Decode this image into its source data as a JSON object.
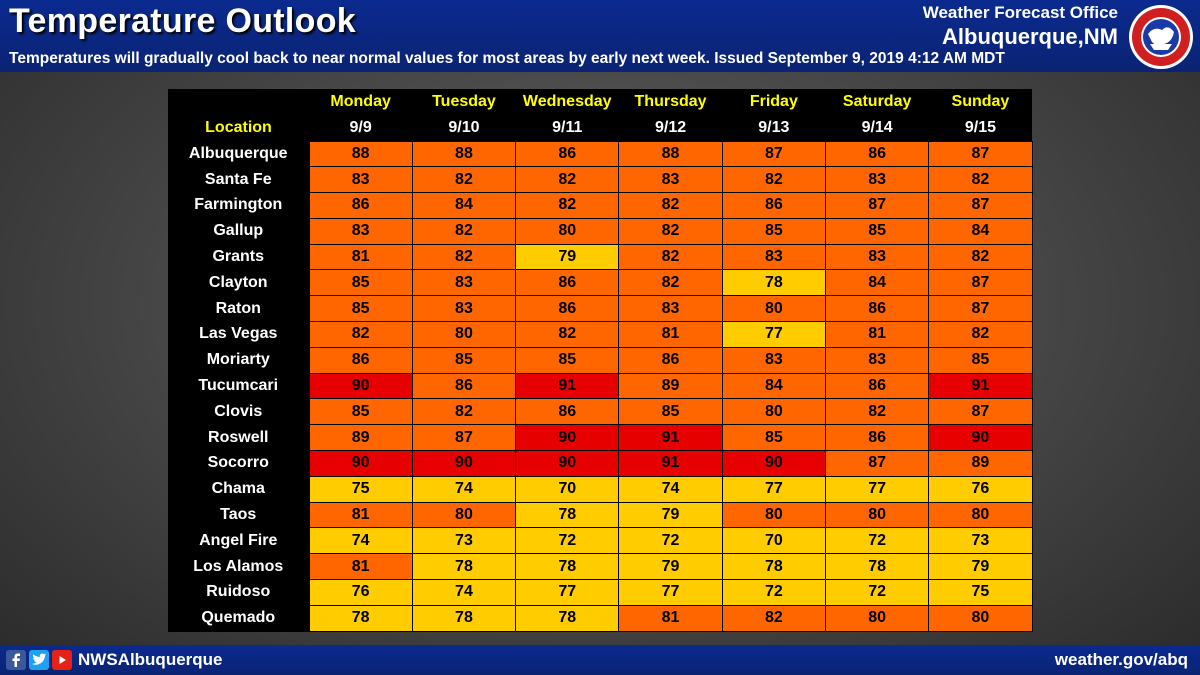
{
  "header": {
    "title": "Temperature Outlook",
    "subtitle": "Temperatures will gradually  cool back to near normal values for most areas by early next week.  Issued September 9, 2019 4:12 AM MDT",
    "office_line1": "Weather Forecast Office",
    "office_line2": "Albuquerque,NM"
  },
  "footer": {
    "handle": "NWSAlbuquerque",
    "website": "weather.gov/abq"
  },
  "colors": {
    "hot": "#e60000",
    "warm": "#ff6600",
    "mild": "#ffcc00"
  },
  "chart_data": {
    "type": "table",
    "title": "Temperature Outlook",
    "location_header": "Location",
    "days": [
      "Monday",
      "Tuesday",
      "Wednesday",
      "Thursday",
      "Friday",
      "Saturday",
      "Sunday"
    ],
    "dates": [
      "9/9",
      "9/10",
      "9/11",
      "9/12",
      "9/13",
      "9/14",
      "9/15"
    ],
    "rows": [
      {
        "location": "Albuquerque",
        "temps": [
          88,
          88,
          86,
          88,
          87,
          86,
          87
        ]
      },
      {
        "location": "Santa Fe",
        "temps": [
          83,
          82,
          82,
          83,
          82,
          83,
          82
        ]
      },
      {
        "location": "Farmington",
        "temps": [
          86,
          84,
          82,
          82,
          86,
          87,
          87
        ]
      },
      {
        "location": "Gallup",
        "temps": [
          83,
          82,
          80,
          82,
          85,
          85,
          84
        ]
      },
      {
        "location": "Grants",
        "temps": [
          81,
          82,
          79,
          82,
          83,
          83,
          82
        ]
      },
      {
        "location": "Clayton",
        "temps": [
          85,
          83,
          86,
          82,
          78,
          84,
          87
        ]
      },
      {
        "location": "Raton",
        "temps": [
          85,
          83,
          86,
          83,
          80,
          86,
          87
        ]
      },
      {
        "location": "Las Vegas",
        "temps": [
          82,
          80,
          82,
          81,
          77,
          81,
          82
        ]
      },
      {
        "location": "Moriarty",
        "temps": [
          86,
          85,
          85,
          86,
          83,
          83,
          85
        ]
      },
      {
        "location": "Tucumcari",
        "temps": [
          90,
          86,
          91,
          89,
          84,
          86,
          91
        ]
      },
      {
        "location": "Clovis",
        "temps": [
          85,
          82,
          86,
          85,
          80,
          82,
          87
        ]
      },
      {
        "location": "Roswell",
        "temps": [
          89,
          87,
          90,
          91,
          85,
          86,
          90
        ]
      },
      {
        "location": "Socorro",
        "temps": [
          90,
          90,
          90,
          91,
          90,
          87,
          89
        ]
      },
      {
        "location": "Chama",
        "temps": [
          75,
          74,
          70,
          74,
          77,
          77,
          76
        ]
      },
      {
        "location": "Taos",
        "temps": [
          81,
          80,
          78,
          79,
          80,
          80,
          80
        ]
      },
      {
        "location": "Angel Fire",
        "temps": [
          74,
          73,
          72,
          72,
          70,
          72,
          73
        ]
      },
      {
        "location": "Los Alamos",
        "temps": [
          81,
          78,
          78,
          79,
          78,
          78,
          79
        ]
      },
      {
        "location": "Ruidoso",
        "temps": [
          76,
          74,
          77,
          77,
          72,
          72,
          75
        ]
      },
      {
        "location": "Quemado",
        "temps": [
          78,
          78,
          78,
          81,
          82,
          80,
          80
        ]
      }
    ]
  }
}
